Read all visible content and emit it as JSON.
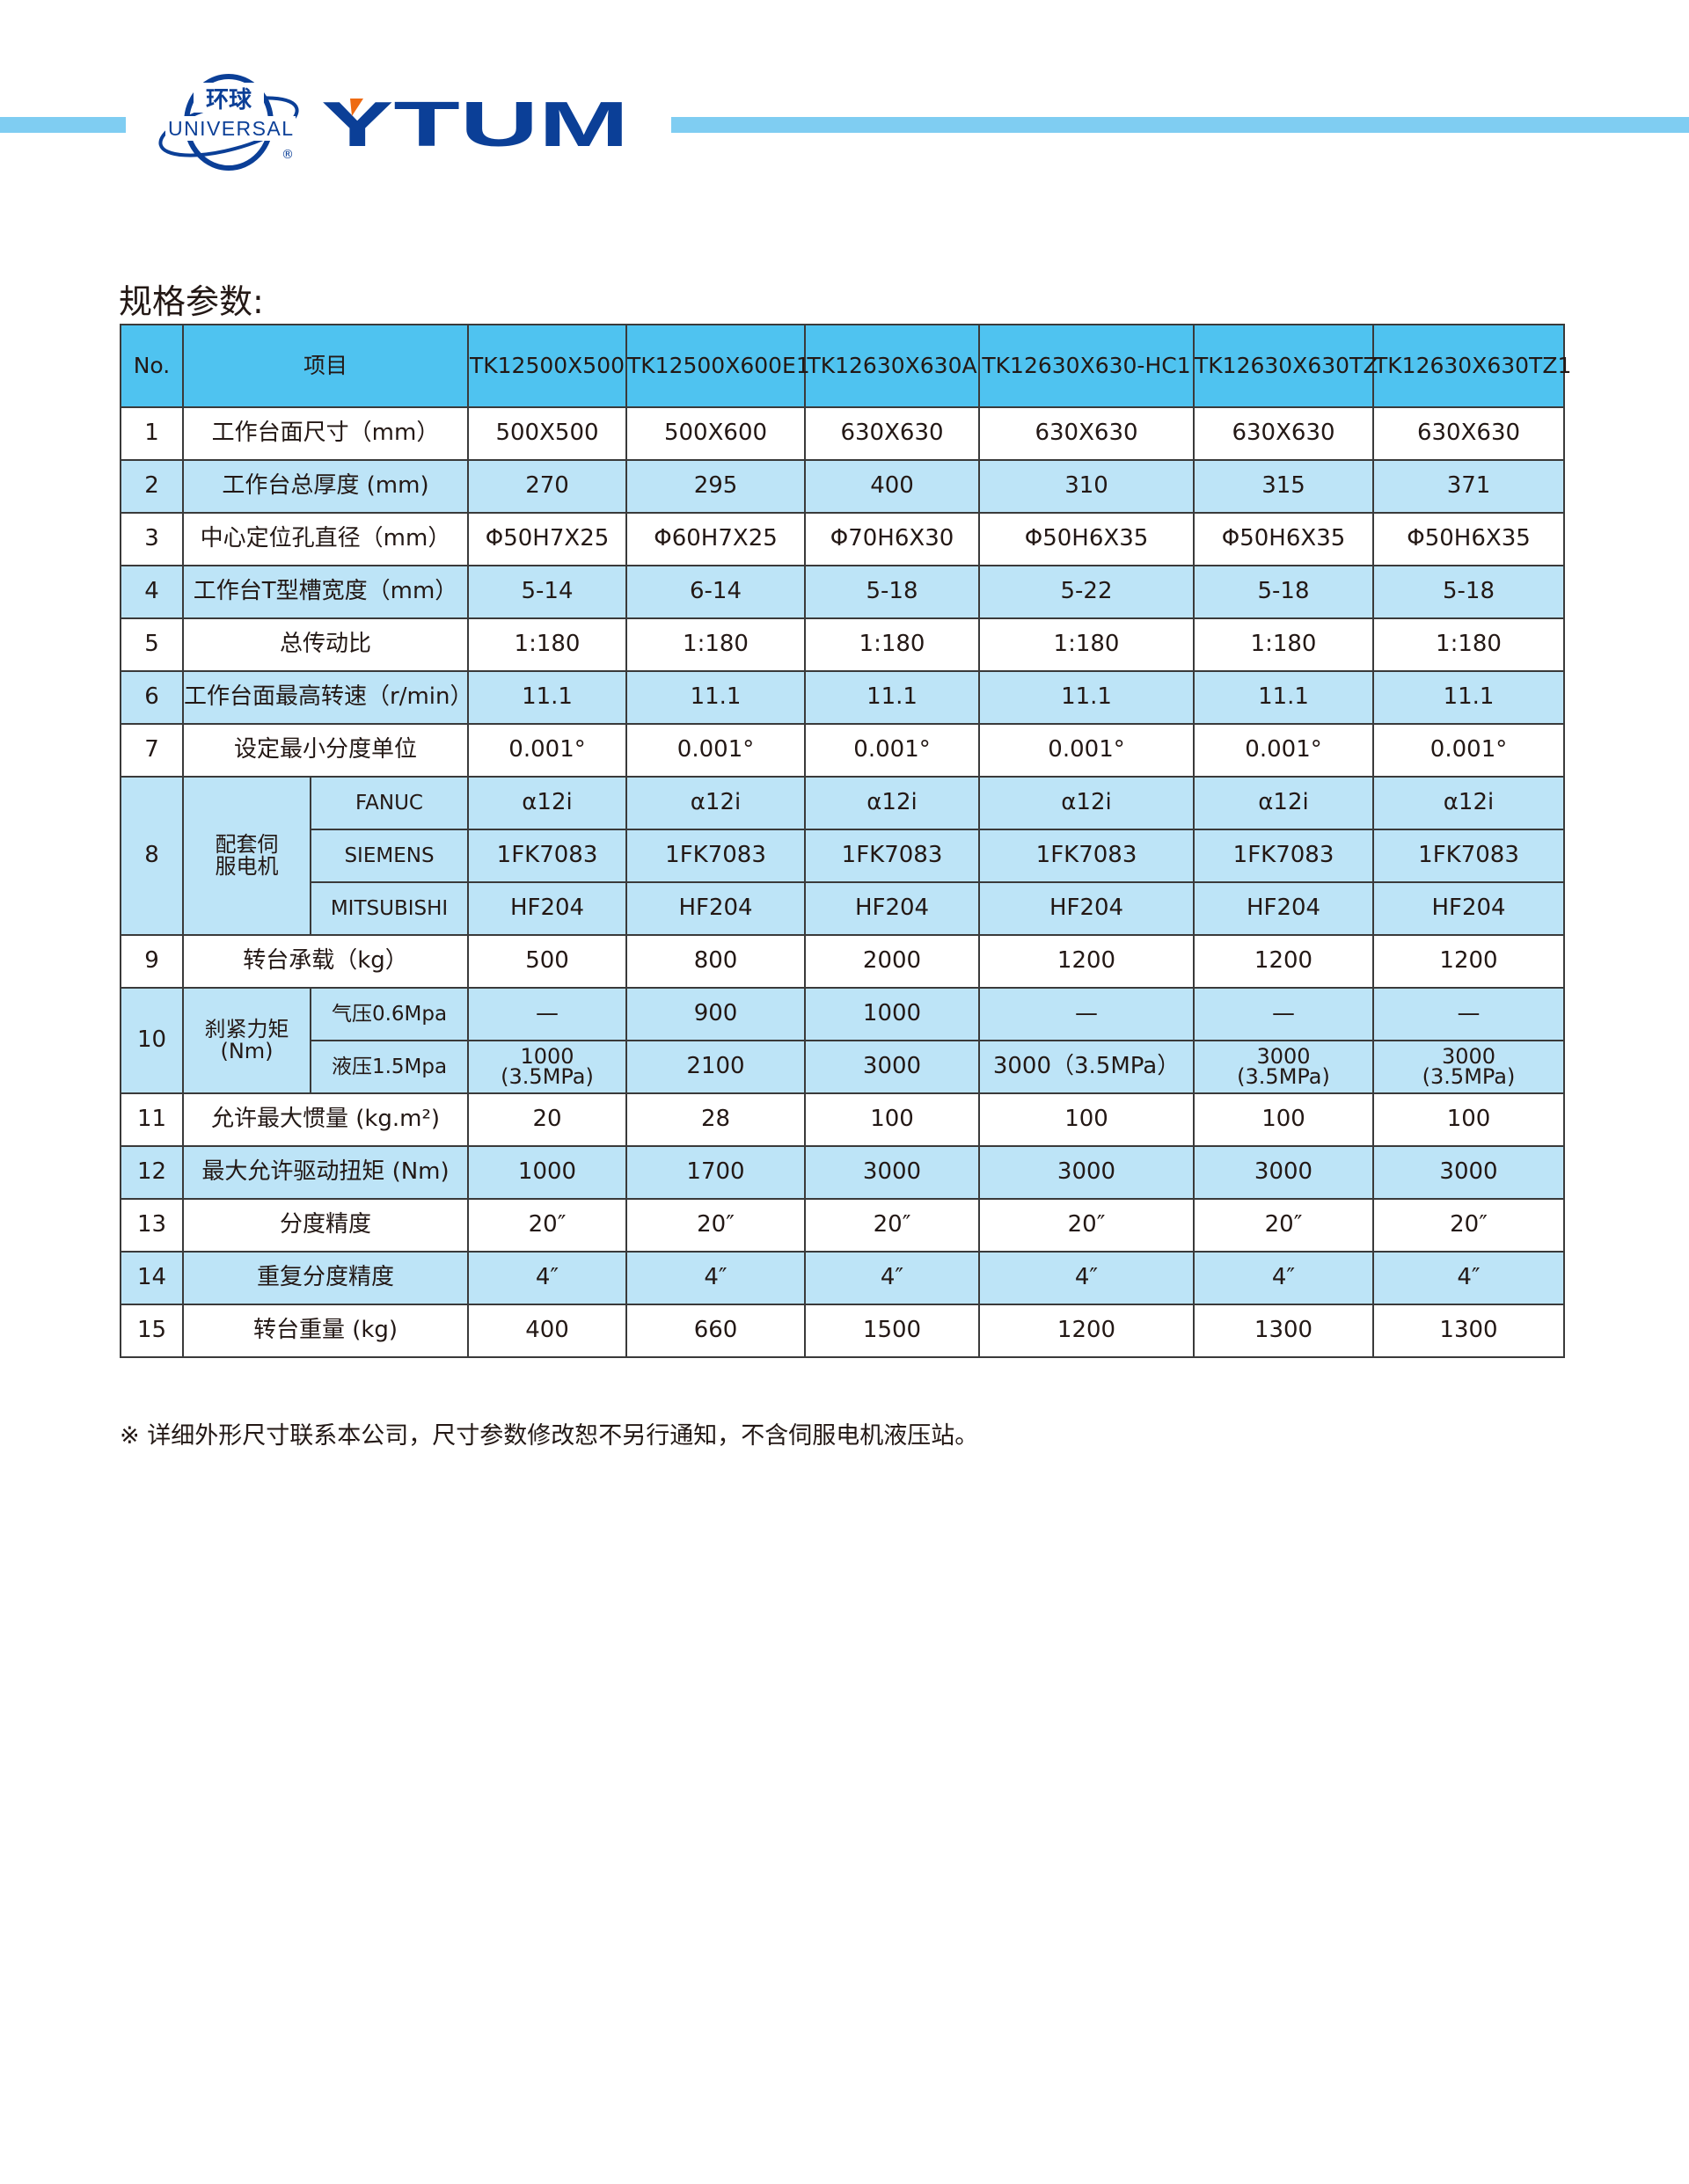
{
  "brand": {
    "logo_cn": "环球",
    "logo_en": "UNIVERSAL",
    "logo_reg": "®",
    "wordmark": "YTUM",
    "colors": {
      "blue": "#0b3f97",
      "orange": "#ee6a12",
      "stripe": "#7fcdf2",
      "header": "#4fc3f0",
      "alt_row": "#bde4f7"
    }
  },
  "title": "规格参数:",
  "table": {
    "headers": [
      "No.",
      "项目",
      "TK12500X500",
      "TK12500X600E1",
      "TK12630X630A",
      "TK12630X630-HC1",
      "TK12630X630TZ",
      "TK12630X630TZ1"
    ],
    "rows": [
      {
        "no": "1",
        "item": "工作台面尺寸（mm）",
        "values": [
          "500X500",
          "500X600",
          "630X630",
          "630X630",
          "630X630",
          "630X630"
        ]
      },
      {
        "no": "2",
        "item": "工作台总厚度 (mm)",
        "values": [
          "270",
          "295",
          "400",
          "310",
          "315",
          "371"
        ]
      },
      {
        "no": "3",
        "item": "中心定位孔直径（mm）",
        "values": [
          "Φ50H7X25",
          "Φ60H7X25",
          "Φ70H6X30",
          "Φ50H6X35",
          "Φ50H6X35",
          "Φ50H6X35"
        ]
      },
      {
        "no": "4",
        "item": "工作台T型槽宽度（mm）",
        "values": [
          "5-14",
          "6-14",
          "5-18",
          "5-22",
          "5-18",
          "5-18"
        ]
      },
      {
        "no": "5",
        "item": "总传动比",
        "values": [
          "1:180",
          "1:180",
          "1:180",
          "1:180",
          "1:180",
          "1:180"
        ]
      },
      {
        "no": "6",
        "item": "工作台面最高转速（r/min）",
        "values": [
          "11.1",
          "11.1",
          "11.1",
          "11.1",
          "11.1",
          "11.1"
        ]
      },
      {
        "no": "7",
        "item": "设定最小分度单位",
        "values": [
          "0.001°",
          "0.001°",
          "0.001°",
          "0.001°",
          "0.001°",
          "0.001°"
        ]
      }
    ],
    "motor": {
      "no": "8",
      "item": "配套伺服电机",
      "sub": [
        {
          "label": "FANUC",
          "values": [
            "α12i",
            "α12i",
            "α12i",
            "α12i",
            "α12i",
            "α12i"
          ]
        },
        {
          "label": "SIEMENS",
          "values": [
            "1FK7083",
            "1FK7083",
            "1FK7083",
            "1FK7083",
            "1FK7083",
            "1FK7083"
          ]
        },
        {
          "label": "MITSUBISHI",
          "values": [
            "HF204",
            "HF204",
            "HF204",
            "HF204",
            "HF204",
            "HF204"
          ]
        }
      ]
    },
    "row9": {
      "no": "9",
      "item": "转台承载（kg）",
      "values": [
        "500",
        "800",
        "2000",
        "1200",
        "1200",
        "1200"
      ]
    },
    "clamp": {
      "no": "10",
      "item": "刹紧力矩",
      "unit": "(Nm)",
      "sub": [
        {
          "label": "气压0.6Mpa",
          "values": [
            "—",
            "900",
            "1000",
            "—",
            "—",
            "—"
          ]
        },
        {
          "label": "液压1.5Mpa",
          "values": [
            "1000 (3.5MPa)",
            "2100",
            "3000",
            "3000（3.5MPa）",
            "3000 (3.5MPa)",
            "3000 (3.5MPa)"
          ]
        }
      ]
    },
    "rows2": [
      {
        "no": "11",
        "item": "允许最大惯量 (kg.m²)",
        "values": [
          "20",
          "28",
          "100",
          "100",
          "100",
          "100"
        ]
      },
      {
        "no": "12",
        "item": "最大允许驱动扭矩 (Nm)",
        "values": [
          "1000",
          "1700",
          "3000",
          "3000",
          "3000",
          "3000"
        ]
      },
      {
        "no": "13",
        "item": "分度精度",
        "values": [
          "20″",
          "20″",
          "20″",
          "20″",
          "20″",
          "20″"
        ]
      },
      {
        "no": "14",
        "item": "重复分度精度",
        "values": [
          "4″",
          "4″",
          "4″",
          "4″",
          "4″",
          "4″"
        ]
      },
      {
        "no": "15",
        "item": "转台重量 (kg)",
        "values": [
          "400",
          "660",
          "1500",
          "1200",
          "1300",
          "1300"
        ]
      }
    ]
  },
  "note": "※ 详细外形尺寸联系本公司，尺寸参数修改恕不另行通知，不含伺服电机液压站。"
}
